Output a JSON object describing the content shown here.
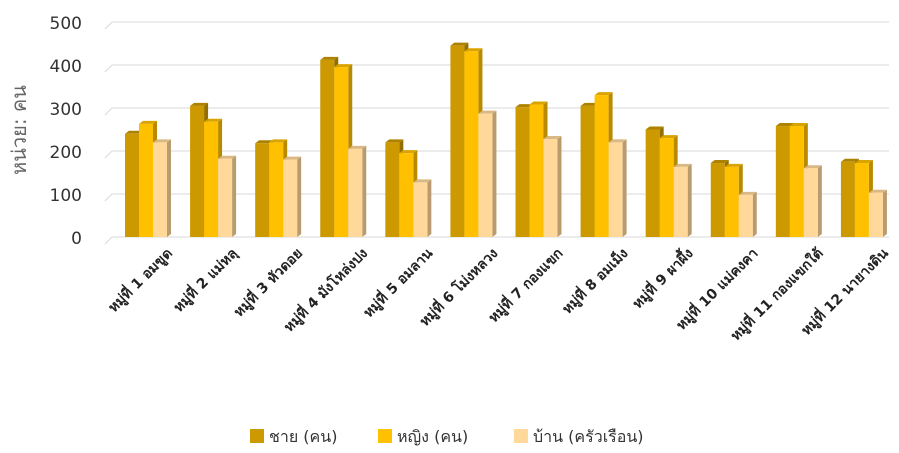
{
  "chart_data": {
    "type": "bar",
    "ylabel": "หน่วย: คน",
    "ylim": [
      0,
      500
    ],
    "yticks": [
      0,
      100,
      200,
      300,
      400,
      500
    ],
    "grid": true,
    "legend_position": "bottom",
    "categories": [
      "หมู่ที่ 1 อมขูด",
      "หมู่ที่ 2 แม่หลุ",
      "หมู่ที่ 3 หัวดอย",
      "หมู่ที่ 4 มังโหล่งปง",
      "หมู่ที่ 5 อมลาน",
      "หมู่ที่ 6 โม่งหลวง",
      "หมู่ที่ 7 กองแขก",
      "หมู่ที่ 8 อมเม็ง",
      "หมู่ที่ 9 ผาผึ้ง",
      "หมู่ที่ 10 แม่คงคา",
      "หมู่ที่ 11 กองแขกใต้",
      "หมู่ที่ 12 นายางดิน"
    ],
    "series": [
      {
        "name": "ชาย (คน)",
        "color": "#CC9900",
        "values": [
          240,
          305,
          218,
          412,
          220,
          445,
          302,
          305,
          250,
          172,
          258,
          175
        ]
      },
      {
        "name": "หญิง (คน)",
        "color": "#FFC000",
        "values": [
          263,
          268,
          220,
          395,
          195,
          432,
          308,
          330,
          230,
          163,
          258,
          172
        ]
      },
      {
        "name": "บ้าน (ครัวเรือน)",
        "color": "#FFD89A",
        "values": [
          220,
          182,
          180,
          205,
          127,
          287,
          228,
          220,
          163,
          98,
          160,
          103
        ]
      }
    ]
  }
}
